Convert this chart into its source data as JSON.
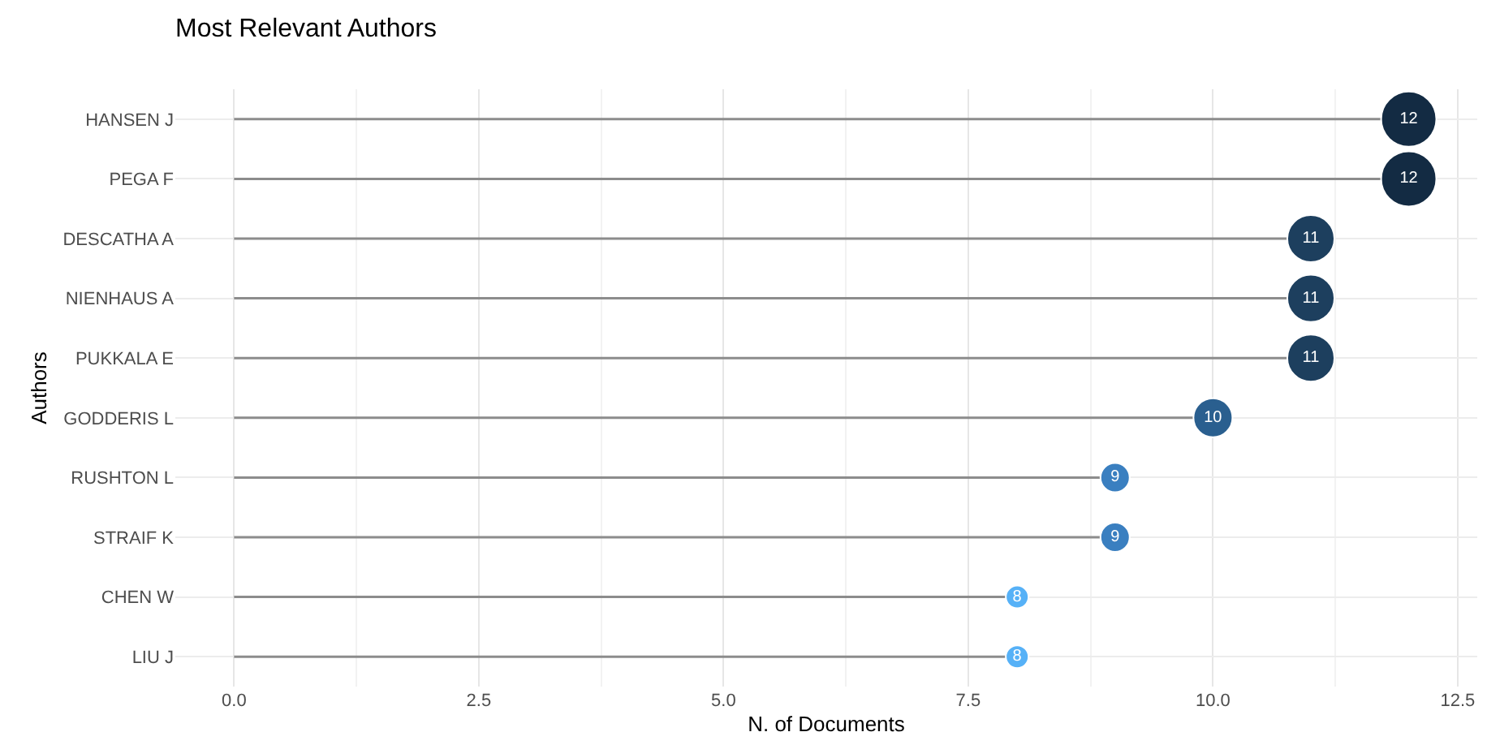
{
  "chart_data": {
    "type": "lollipop",
    "title": "Most Relevant Authors",
    "xlabel": "N. of Documents",
    "ylabel": "Authors",
    "orientation": "horizontal",
    "categories": [
      "HANSEN J",
      "PEGA F",
      "DESCATHA A",
      "NIENHAUS A",
      "PUKKALA E",
      "GODDERIS L",
      "RUSHTON L",
      "STRAIF K",
      "CHEN W",
      "LIU J"
    ],
    "values": [
      12,
      12,
      11,
      11,
      11,
      10,
      9,
      9,
      8,
      8
    ],
    "sizes": [
      1,
      1,
      0.73,
      0.73,
      0.73,
      0.5,
      0.28,
      0.28,
      0.17,
      0.17
    ],
    "colors": [
      "#132b43",
      "#132b43",
      "#1d3f5e",
      "#1d3f5e",
      "#1d3f5e",
      "#2a5f8f",
      "#3a7fc0",
      "#3a7fc0",
      "#56b1f7",
      "#56b1f7"
    ],
    "xlim": [
      -0.6,
      12.7
    ],
    "xticks": [
      {
        "value": 0,
        "label": "0.0"
      },
      {
        "value": 2.5,
        "label": "2.5"
      },
      {
        "value": 5,
        "label": "5.0"
      },
      {
        "value": 7.5,
        "label": "7.5"
      },
      {
        "value": 10,
        "label": "10.0"
      },
      {
        "value": 12.5,
        "label": "12.5"
      }
    ],
    "data_labels": true,
    "grid": true,
    "marker": "circle"
  }
}
